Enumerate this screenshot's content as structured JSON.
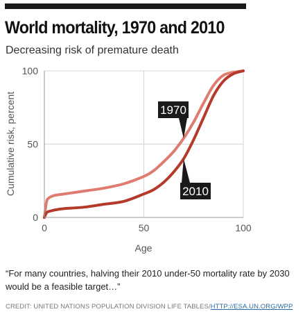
{
  "header": {
    "title": "World mortality, 1970 and 2010",
    "subtitle": "Decreasing risk of premature death"
  },
  "chart_data": {
    "type": "line",
    "title": "World mortality, 1970 and 2010",
    "subtitle": "Decreasing risk of premature death",
    "xlabel": "Age",
    "ylabel": "Cumulative risk, percent",
    "xlim": [
      0,
      100
    ],
    "ylim": [
      0,
      100
    ],
    "xticks": [
      0,
      50,
      100
    ],
    "yticks": [
      0,
      50,
      100
    ],
    "grid": true,
    "series": [
      {
        "name": "1970",
        "color": "#e07b70",
        "x": [
          0,
          1,
          2,
          5,
          10,
          20,
          30,
          40,
          50,
          55,
          60,
          65,
          70,
          75,
          80,
          85,
          90,
          95,
          100
        ],
        "y": [
          0,
          10,
          13,
          15,
          16,
          18,
          20,
          23,
          28,
          32,
          38,
          45,
          54,
          65,
          78,
          90,
          97,
          99,
          100
        ]
      },
      {
        "name": "2010",
        "color": "#b63a2b",
        "x": [
          0,
          1,
          2,
          5,
          10,
          20,
          30,
          40,
          50,
          55,
          60,
          65,
          70,
          75,
          80,
          85,
          90,
          95,
          100
        ],
        "y": [
          0,
          3,
          4,
          5,
          6,
          7,
          9,
          11,
          16,
          19,
          24,
          31,
          40,
          53,
          68,
          83,
          93,
          98,
          100
        ]
      }
    ]
  },
  "footer": {
    "quote": "“For many countries, halving their 2010 under-50 mortality rate by 2030 would be a feasible target…”",
    "credit_prefix": "CREDIT: UNITED NATIONS POPULATION DIVISION LIFE TABLES/",
    "credit_link": "HTTP://ESA.UN.ORG/WPP"
  }
}
